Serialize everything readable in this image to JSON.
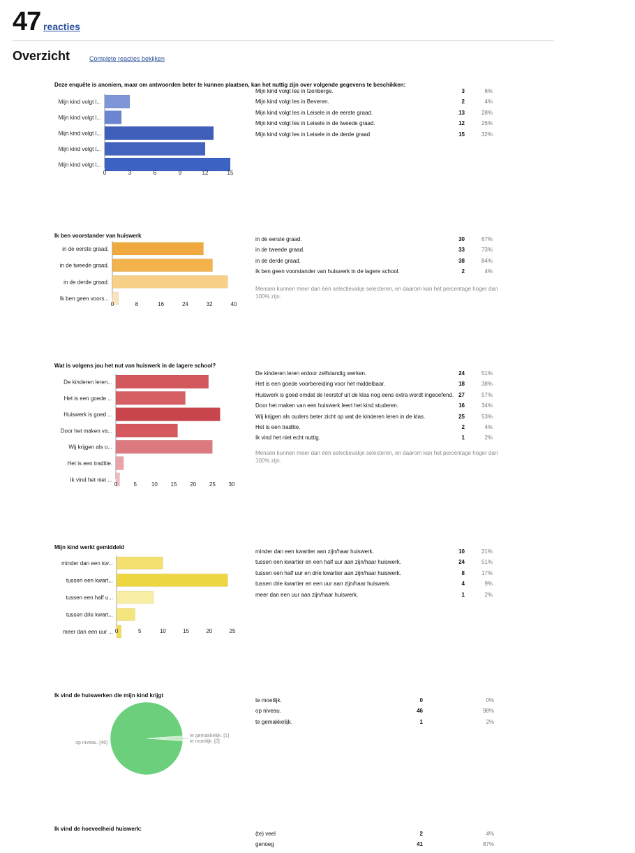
{
  "header": {
    "count": "47",
    "count_label": "reacties",
    "section_title": "Overzicht",
    "section_link": "Complete reacties bekijken"
  },
  "note": "Mensen kunnen meer dan één selectievakje selecteren, en daarom kan het percentage hoger dan 100% zijn.",
  "questions": [
    {
      "title": "Deze enquête is anoniem, maar om antwoorden beter te kunnen plaatsen, kan het nuttig zijn over volgende gegevens te beschikken:",
      "rows": [
        {
          "label": "Mijn kind volgt les in Izenberge.",
          "count": "3",
          "pct": "6%"
        },
        {
          "label": "Mijn kind volgt les in Beveren.",
          "count": "2",
          "pct": "4%"
        },
        {
          "label": "Mijn kind volgt les in Leisele in de eerste graad.",
          "count": "13",
          "pct": "28%"
        },
        {
          "label": "Mijn kind volgt les in Leisele in de tweede graad.",
          "count": "12",
          "pct": "26%"
        },
        {
          "label": "Mijn kind volgt les in Leisele in de derde graad",
          "count": "15",
          "pct": "32%"
        }
      ]
    },
    {
      "title": "Ik ben voorstander van huiswerk",
      "rows": [
        {
          "label": "in de eerste graad.",
          "count": "30",
          "pct": "67%"
        },
        {
          "label": "in de tweede graad.",
          "count": "33",
          "pct": "73%"
        },
        {
          "label": "in de derde graad.",
          "count": "38",
          "pct": "84%"
        },
        {
          "label": "Ik ben geen voorstander van huiswerk in de lagere school.",
          "count": "2",
          "pct": "4%"
        }
      ]
    },
    {
      "title": "Wat is volgens jou het nut van huiswerk in de lagere school?",
      "rows": [
        {
          "label": "De kinderen leren erdoor zelfstandig werken.",
          "count": "24",
          "pct": "51%"
        },
        {
          "label": "Het is een goede voorbereiding voor het middelbaar.",
          "count": "18",
          "pct": "38%"
        },
        {
          "label": "Huiswerk is goed omdat de leerstof uit de klas nog eens extra wordt ingeoefend.",
          "count": "27",
          "pct": "57%"
        },
        {
          "label": "Door het maken van een huiswerk leert het kind studeren.",
          "count": "16",
          "pct": "34%"
        },
        {
          "label": "Wij krijgen als ouders beter zicht op wat de kinderen leren in de klas.",
          "count": "25",
          "pct": "53%"
        },
        {
          "label": "Het is een traditie.",
          "count": "2",
          "pct": "4%"
        },
        {
          "label": "Ik vind het niet echt nuttig.",
          "count": "1",
          "pct": "2%"
        }
      ]
    },
    {
      "title": "Mijn kind werkt gemiddeld",
      "rows": [
        {
          "label": "minder dan een kwartier aan zijn/haar huiswerk.",
          "count": "10",
          "pct": "21%"
        },
        {
          "label": "tussen een kwartier en een half uur aan zijn/haar huiswerk.",
          "count": "24",
          "pct": "51%"
        },
        {
          "label": "tussen een half uur en drie kwartier aan zijn/haar huiswerk.",
          "count": "8",
          "pct": "17%"
        },
        {
          "label": "tussen drie kwartier en een uur aan zijn/haar huiswerk.",
          "count": "4",
          "pct": "9%"
        },
        {
          "label": "meer dan een uur aan zijn/haar huiswerk.",
          "count": "1",
          "pct": "2%"
        }
      ]
    },
    {
      "title": "Ik vind de huiswerken die mijn kind krijgt",
      "rows": [
        {
          "label": "te moeilijk.",
          "count": "0",
          "pct": "0%"
        },
        {
          "label": "op niveau.",
          "count": "46",
          "pct": "98%"
        },
        {
          "label": "te gemakkelijk.",
          "count": "1",
          "pct": "2%"
        }
      ]
    },
    {
      "title": "Ik vind de hoeveelheid huiswerk:",
      "rows": [
        {
          "label": "(te) veel",
          "count": "2",
          "pct": "4%"
        },
        {
          "label": "genoeg",
          "count": "41",
          "pct": "87%"
        }
      ]
    }
  ],
  "chart_data": [
    {
      "type": "bar",
      "orientation": "horizontal",
      "categories": [
        "Mijn kind volgt l...",
        "Mijn kind volgt l...",
        "Mijn kind volgt l...",
        "Mijn kind volgt l...",
        "Mijn kind volgt l..."
      ],
      "values": [
        3,
        2,
        13,
        12,
        15
      ],
      "colors": [
        "#7e95d8",
        "#6c85d2",
        "#3e5fba",
        "#4264bf",
        "#3c62c4"
      ],
      "ticks": [
        "0",
        "3",
        "6",
        "9",
        "12",
        "15"
      ],
      "xlim": [
        0,
        15
      ]
    },
    {
      "type": "bar",
      "orientation": "horizontal",
      "categories": [
        "in de eerste graad.",
        "in de tweede graad.",
        "in de derde graad.",
        "Ik ben geen voors..."
      ],
      "values": [
        30,
        33,
        38,
        2
      ],
      "colors": [
        "#f0a93e",
        "#f2b24c",
        "#f7cf86",
        "#fbe3bd"
      ],
      "ticks": [
        "0",
        "8",
        "16",
        "24",
        "32",
        "40"
      ],
      "xlim": [
        0,
        40
      ]
    },
    {
      "type": "bar",
      "orientation": "horizontal",
      "categories": [
        "De kinderen leren...",
        "Het is een goede ...",
        "Huiswerk is goed ...",
        "Door het maken va...",
        "Wij krijgen als o...",
        "Het is een traditie.",
        "Ik vind het niet ..."
      ],
      "values": [
        24,
        18,
        27,
        16,
        25,
        2,
        1
      ],
      "colors": [
        "#d2585e",
        "#d65f64",
        "#c9454c",
        "#d4585d",
        "#dd7a80",
        "#eba3a7",
        "#f1bcbf"
      ],
      "ticks": [
        "0",
        "5",
        "10",
        "15",
        "20",
        "25",
        "30"
      ],
      "xlim": [
        0,
        30
      ]
    },
    {
      "type": "bar",
      "orientation": "horizontal",
      "categories": [
        "minder dan een kw...",
        "tussen een kwart...",
        "tussen een half u...",
        "tussen drie kwart...",
        "meer dan een uur ..."
      ],
      "values": [
        10,
        24,
        8,
        4,
        1
      ],
      "colors": [
        "#f3e070",
        "#eed641",
        "#f8eda4",
        "#f4e57d",
        "#f1dc55"
      ],
      "ticks": [
        "0",
        "5",
        "10",
        "15",
        "20",
        "25"
      ],
      "xlim": [
        0,
        25
      ]
    },
    {
      "type": "pie",
      "categories": [
        "te moeilijk.",
        "op niveau.",
        "te gemakkelijk."
      ],
      "values": [
        0,
        46,
        1
      ],
      "colors": [
        "#dddddd",
        "#6ccf7c",
        "#c6ecc9"
      ],
      "slice_labels": [
        "te moeilijk. [0]",
        "op niveau. [46]",
        "te gemakkelijk. [1]"
      ]
    }
  ]
}
